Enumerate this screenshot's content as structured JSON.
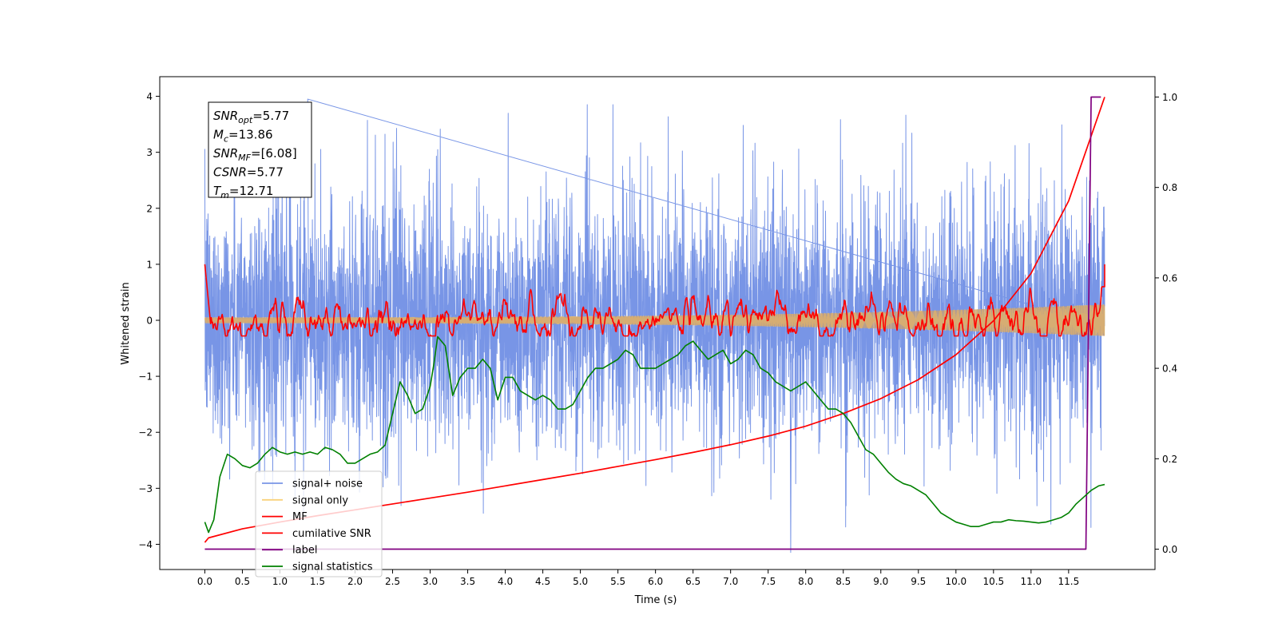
{
  "chart_data": {
    "type": "line",
    "title": "",
    "xlabel": "Time (s)",
    "ylabel": "Whitened strain",
    "ylabel_right": "",
    "xlim": [
      -0.6,
      12.65
    ],
    "ylim": [
      -4.45,
      4.35
    ],
    "ylim_right": [
      -0.045,
      1.045
    ],
    "x_ticks": [
      0.0,
      0.5,
      1.0,
      1.5,
      2.0,
      2.5,
      3.0,
      3.5,
      4.0,
      4.5,
      5.0,
      5.5,
      6.0,
      6.5,
      7.0,
      7.5,
      8.0,
      8.5,
      9.0,
      9.5,
      10.0,
      10.5,
      11.0,
      11.5
    ],
    "x_tick_labels": [
      "0.0",
      "0.5",
      "1.0",
      "1.5",
      "2.0",
      "2.5",
      "3.0",
      "3.5",
      "4.0",
      "4.5",
      "5.0",
      "5.5",
      "6.0",
      "6.5",
      "7.0",
      "7.5",
      "8.0",
      "8.5",
      "9.0",
      "9.5",
      "10.0",
      "10.5",
      "11.0",
      "11.5"
    ],
    "y_ticks": [
      -4,
      -3,
      -2,
      -1,
      0,
      1,
      2,
      3,
      4
    ],
    "y_tick_labels": [
      "−4",
      "−3",
      "−2",
      "−1",
      "0",
      "1",
      "2",
      "3",
      "4"
    ],
    "y_right_ticks": [
      0.0,
      0.2,
      0.4,
      0.6,
      0.8,
      1.0
    ],
    "y_right_tick_labels": [
      "0.0",
      "0.2",
      "0.4",
      "0.6",
      "0.8",
      "1.0"
    ],
    "grid": false,
    "legend_position": "lower-left",
    "annotation": [
      {
        "base": "SNR",
        "sub": "opt",
        "value": "=5.77"
      },
      {
        "base": "M",
        "sub": "c",
        "value": "=13.86"
      },
      {
        "base": "SNR",
        "sub": "MF",
        "value": "=[6.08]"
      },
      {
        "base": "CSNR",
        "sub": "",
        "value": "=5.77"
      },
      {
        "base": "T",
        "sub": "m",
        "value": "=12.71"
      }
    ],
    "series": [
      {
        "name": "signal+ noise",
        "color": "#7895e6",
        "axis": "left",
        "t_start": 0.0,
        "t_end": 11.98,
        "center": 0.0,
        "std": 1.05,
        "spike_max": 3.95,
        "spike_min": -4.15
      },
      {
        "name": "signal only",
        "color": "#f9d27c",
        "axis": "left",
        "t_start": 0.0,
        "t_end": 11.98,
        "amplitude_start": 0.05,
        "amplitude_end": 0.28
      },
      {
        "name": "MF",
        "color": "#ff0000",
        "axis": "left",
        "t_start": 0.0,
        "t_end": 11.98,
        "start_value": 1.0,
        "end_value": 1.0,
        "peaks": [
          [
            3.1,
            0.45
          ],
          [
            6.5,
            0.42
          ],
          [
            7.3,
            0.44
          ],
          [
            10.98,
            0.57
          ]
        ]
      },
      {
        "name": "cumilative SNR",
        "color": "#ff0000",
        "axis": "right",
        "x": [
          0.0,
          0.05,
          0.5,
          1.0,
          1.5,
          2.0,
          2.5,
          3.0,
          3.5,
          4.0,
          4.5,
          5.0,
          5.5,
          6.0,
          6.5,
          7.0,
          7.5,
          8.0,
          8.5,
          9.0,
          9.5,
          10.0,
          10.5,
          11.0,
          11.5,
          11.98
        ],
        "y": [
          0.015,
          0.025,
          0.045,
          0.06,
          0.074,
          0.087,
          0.1,
          0.113,
          0.126,
          0.14,
          0.154,
          0.168,
          0.183,
          0.198,
          0.214,
          0.231,
          0.25,
          0.272,
          0.3,
          0.333,
          0.375,
          0.43,
          0.505,
          0.61,
          0.77,
          1.0
        ]
      },
      {
        "name": "label",
        "color": "#800080",
        "axis": "right",
        "x": [
          0.0,
          11.73,
          11.8,
          11.93
        ],
        "y": [
          0.0,
          0.0,
          1.0,
          1.0
        ]
      },
      {
        "name": "signal statistics",
        "color": "#008000",
        "axis": "right",
        "x": [
          0.0,
          0.05,
          0.12,
          0.2,
          0.3,
          0.4,
          0.5,
          0.6,
          0.7,
          0.8,
          0.9,
          1.0,
          1.1,
          1.2,
          1.3,
          1.4,
          1.5,
          1.6,
          1.7,
          1.8,
          1.9,
          2.0,
          2.1,
          2.2,
          2.3,
          2.4,
          2.5,
          2.6,
          2.7,
          2.8,
          2.9,
          3.0,
          3.05,
          3.1,
          3.2,
          3.3,
          3.4,
          3.5,
          3.6,
          3.7,
          3.8,
          3.9,
          4.0,
          4.1,
          4.2,
          4.3,
          4.4,
          4.5,
          4.6,
          4.7,
          4.8,
          4.9,
          5.0,
          5.1,
          5.2,
          5.3,
          5.4,
          5.5,
          5.6,
          5.7,
          5.8,
          5.9,
          6.0,
          6.1,
          6.2,
          6.3,
          6.4,
          6.5,
          6.6,
          6.7,
          6.8,
          6.9,
          7.0,
          7.1,
          7.2,
          7.3,
          7.4,
          7.5,
          7.6,
          7.7,
          7.8,
          7.9,
          8.0,
          8.1,
          8.2,
          8.3,
          8.4,
          8.5,
          8.6,
          8.7,
          8.8,
          8.9,
          9.0,
          9.1,
          9.2,
          9.3,
          9.4,
          9.5,
          9.6,
          9.7,
          9.8,
          9.9,
          10.0,
          10.1,
          10.2,
          10.3,
          10.4,
          10.5,
          10.6,
          10.7,
          10.8,
          10.9,
          11.0,
          11.1,
          11.2,
          11.3,
          11.4,
          11.5,
          11.6,
          11.7,
          11.8,
          11.9,
          11.98
        ],
        "y": [
          0.06,
          0.037,
          0.065,
          0.16,
          0.21,
          0.2,
          0.185,
          0.18,
          0.19,
          0.21,
          0.225,
          0.215,
          0.21,
          0.215,
          0.21,
          0.215,
          0.21,
          0.225,
          0.22,
          0.21,
          0.19,
          0.19,
          0.2,
          0.21,
          0.215,
          0.23,
          0.3,
          0.37,
          0.34,
          0.3,
          0.31,
          0.36,
          0.41,
          0.47,
          0.45,
          0.34,
          0.38,
          0.4,
          0.4,
          0.42,
          0.4,
          0.33,
          0.38,
          0.38,
          0.35,
          0.34,
          0.33,
          0.34,
          0.33,
          0.31,
          0.31,
          0.32,
          0.35,
          0.38,
          0.4,
          0.4,
          0.41,
          0.42,
          0.44,
          0.43,
          0.4,
          0.4,
          0.4,
          0.41,
          0.42,
          0.43,
          0.45,
          0.46,
          0.44,
          0.42,
          0.43,
          0.44,
          0.41,
          0.42,
          0.44,
          0.43,
          0.4,
          0.39,
          0.37,
          0.36,
          0.35,
          0.36,
          0.37,
          0.35,
          0.33,
          0.31,
          0.31,
          0.3,
          0.28,
          0.25,
          0.22,
          0.21,
          0.19,
          0.17,
          0.155,
          0.145,
          0.14,
          0.13,
          0.12,
          0.1,
          0.08,
          0.07,
          0.06,
          0.055,
          0.05,
          0.05,
          0.055,
          0.06,
          0.06,
          0.065,
          0.063,
          0.062,
          0.06,
          0.058,
          0.06,
          0.065,
          0.07,
          0.08,
          0.1,
          0.115,
          0.13,
          0.14,
          0.143
        ]
      }
    ]
  }
}
